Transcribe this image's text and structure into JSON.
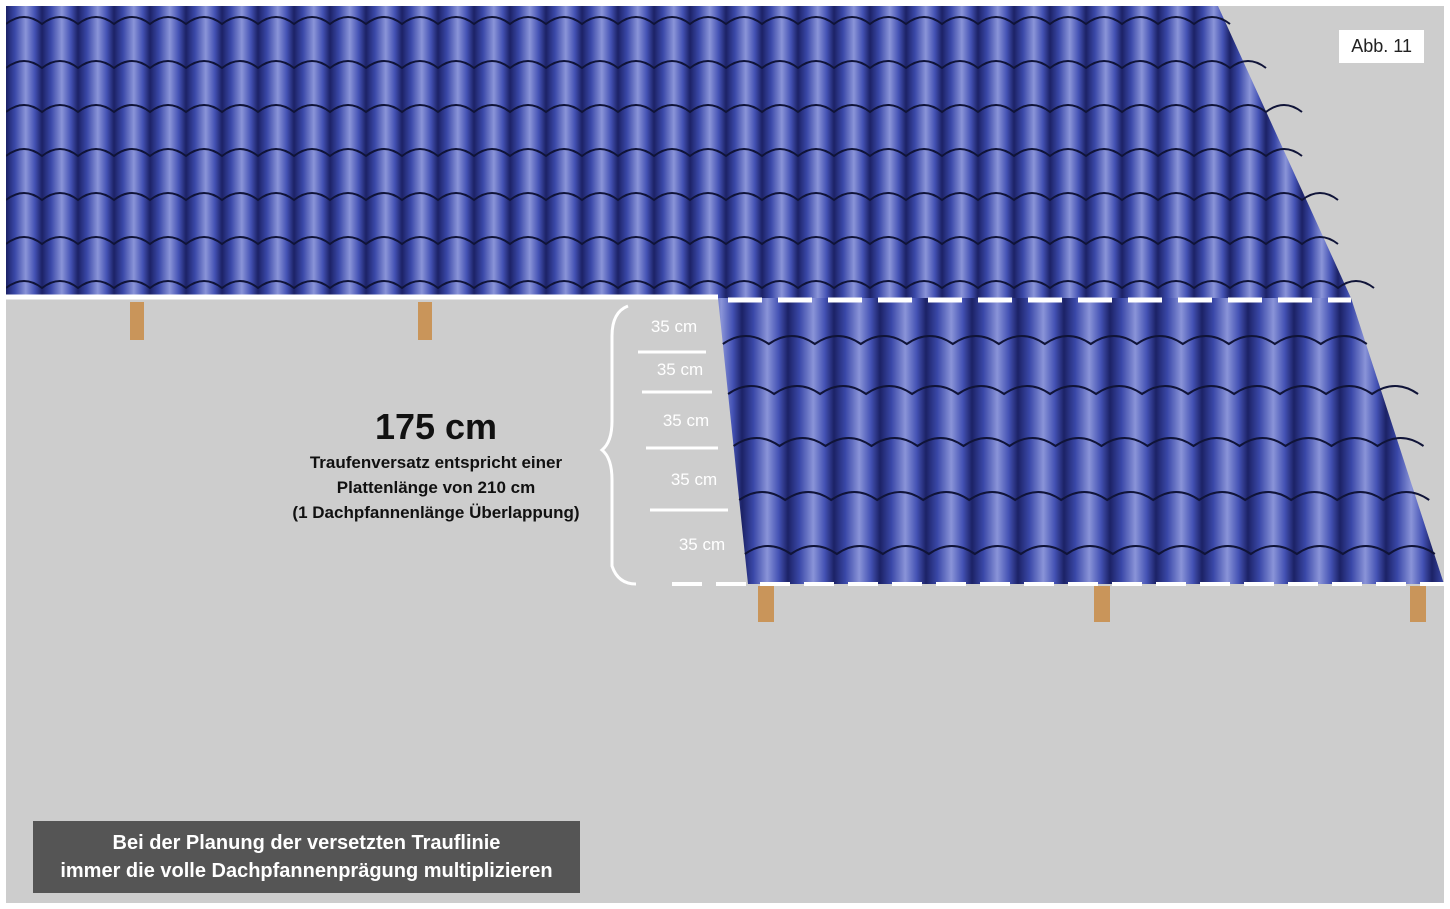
{
  "figure_label": "Abb. 11",
  "measurements": {
    "segment_labels": [
      "35 cm",
      "35 cm",
      "35 cm",
      "35 cm",
      "35 cm"
    ],
    "total": "175 cm",
    "description_lines": [
      "Traufenversatz entspricht einer",
      "Plattenlänge von 210 cm",
      "(1 Dachpfannenlänge Überlappung)"
    ]
  },
  "note": {
    "lines": [
      "Bei der Planung der versetzten Trauflinie",
      "immer die volle Dachpfannenprägung multiplizieren"
    ]
  },
  "colors": {
    "background": "#cdcdcd",
    "roof_tile": "#3a48a8",
    "tile_highlight": "#8a94d8",
    "tile_shadow": "#1c2266",
    "rafter": "#c9955a",
    "dashed_line": "#ffffff",
    "note_box": "#555555"
  }
}
